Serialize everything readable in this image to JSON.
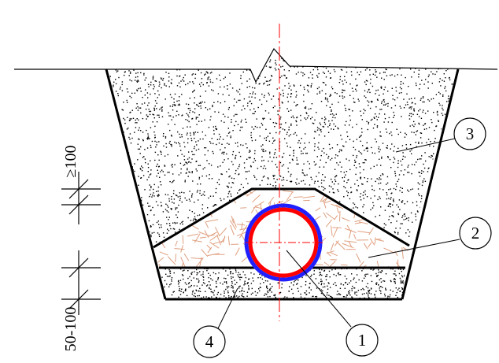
{
  "dimensions": {
    "cover_min": "≥100",
    "bedding": "50-100"
  },
  "callouts": [
    {
      "id": "pipe",
      "label": "1"
    },
    {
      "id": "sand-around-pipe",
      "label": "2"
    },
    {
      "id": "backfill",
      "label": "3"
    },
    {
      "id": "bedding",
      "label": "4"
    }
  ],
  "colors": {
    "line": "#000000",
    "centerline": "#ff0000",
    "pipe_outer": "#2020ff",
    "pipe_inner": "#ff0000",
    "sand_hatch": "#e0a080",
    "stipple": "#000000"
  }
}
